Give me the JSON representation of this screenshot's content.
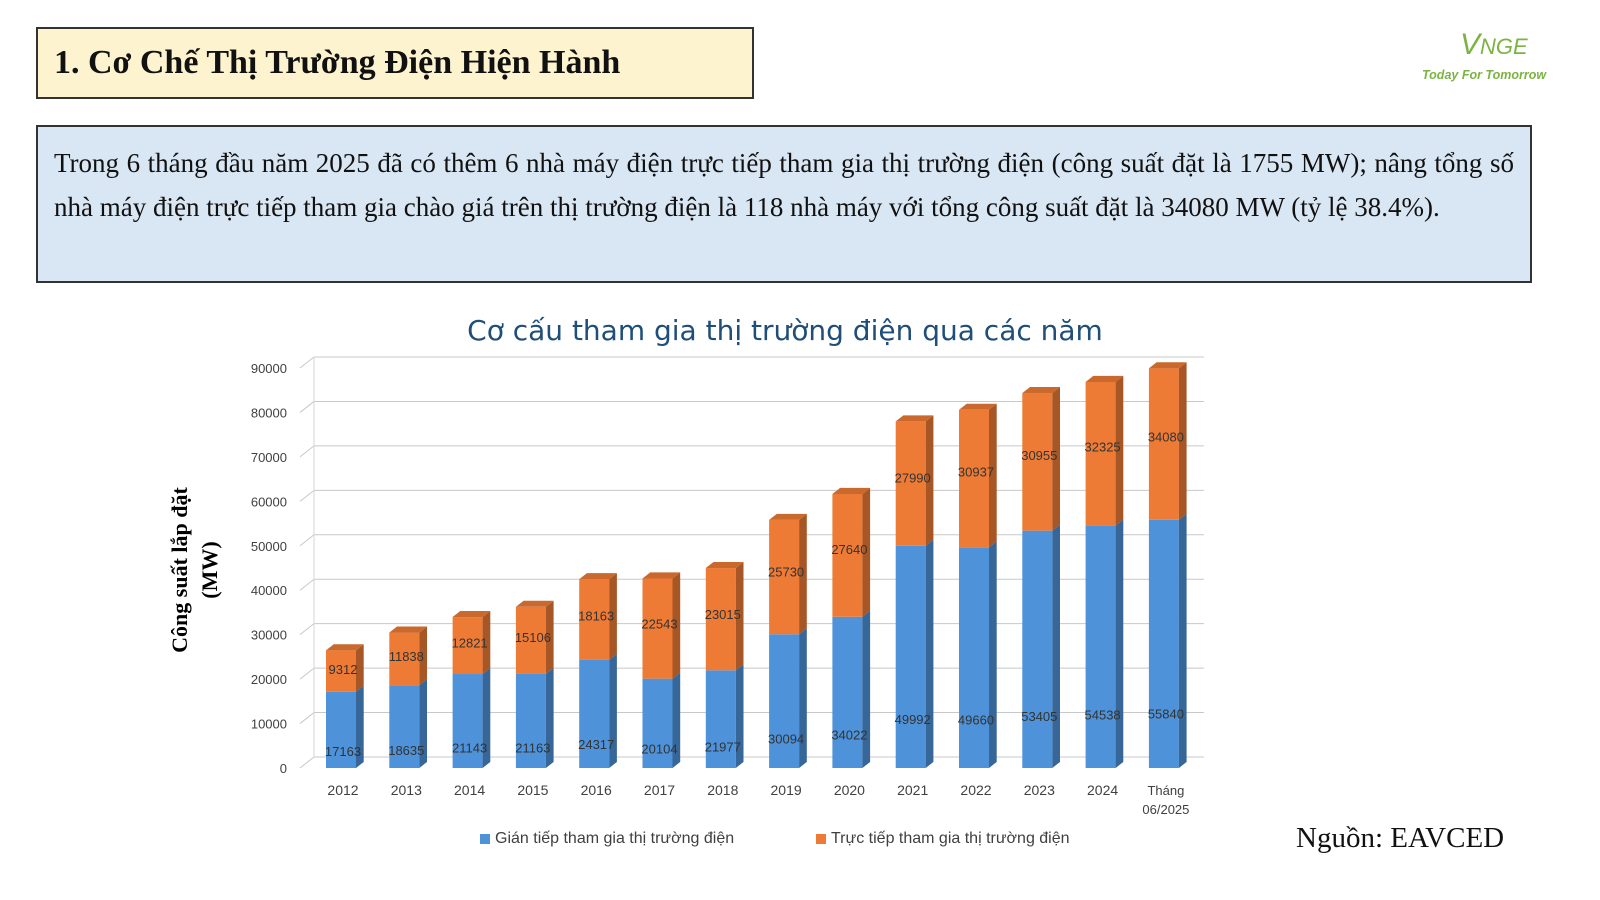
{
  "header": {
    "title": "1. Cơ Chế Thị Trường Điện Hiện Hành"
  },
  "logo": {
    "mark_v": "V",
    "mark_rest": "NGE",
    "tagline": "Today For Tomorrow"
  },
  "summary": {
    "text": "Trong 6 tháng đầu năm 2025 đã có thêm 6 nhà máy điện trực tiếp tham gia thị trường điện (công suất đặt là 1755 MW); nâng tổng số nhà máy điện trực tiếp tham gia chào giá trên thị trường điện là 118 nhà máy với tổng công suất đặt là 34080 MW (tỷ lệ 38.4%)."
  },
  "source": "Nguồn: EAVCED",
  "colors": {
    "indirect": "#4e92d9",
    "direct": "#ee7b35"
  },
  "chart_data": {
    "type": "bar",
    "stacked": true,
    "title": "Cơ cấu tham gia thị trường điện qua các năm",
    "ylabel_line1": "Công suất lắp đặt",
    "ylabel_line2": "(MW)",
    "xlabel": "",
    "ylim": [
      0,
      90000
    ],
    "yticks": [
      0,
      10000,
      20000,
      30000,
      40000,
      50000,
      60000,
      70000,
      80000,
      90000
    ],
    "categories": [
      "2012",
      "2013",
      "2014",
      "2015",
      "2016",
      "2017",
      "2018",
      "2019",
      "2020",
      "2021",
      "2022",
      "2023",
      "2024",
      "Tháng 06/2025"
    ],
    "series": [
      {
        "name": "Gián tiếp tham gia thị trường điện",
        "values": [
          17163,
          18635,
          21143,
          21163,
          24317,
          20104,
          21977,
          30094,
          34022,
          49992,
          49660,
          53405,
          54538,
          55840
        ]
      },
      {
        "name": "Trực tiếp tham gia thị trường điện",
        "values": [
          9312,
          11838,
          12821,
          15106,
          18163,
          22543,
          23015,
          25730,
          27640,
          27990,
          30937,
          30955,
          32325,
          34080
        ]
      }
    ],
    "legend_position": "bottom"
  }
}
